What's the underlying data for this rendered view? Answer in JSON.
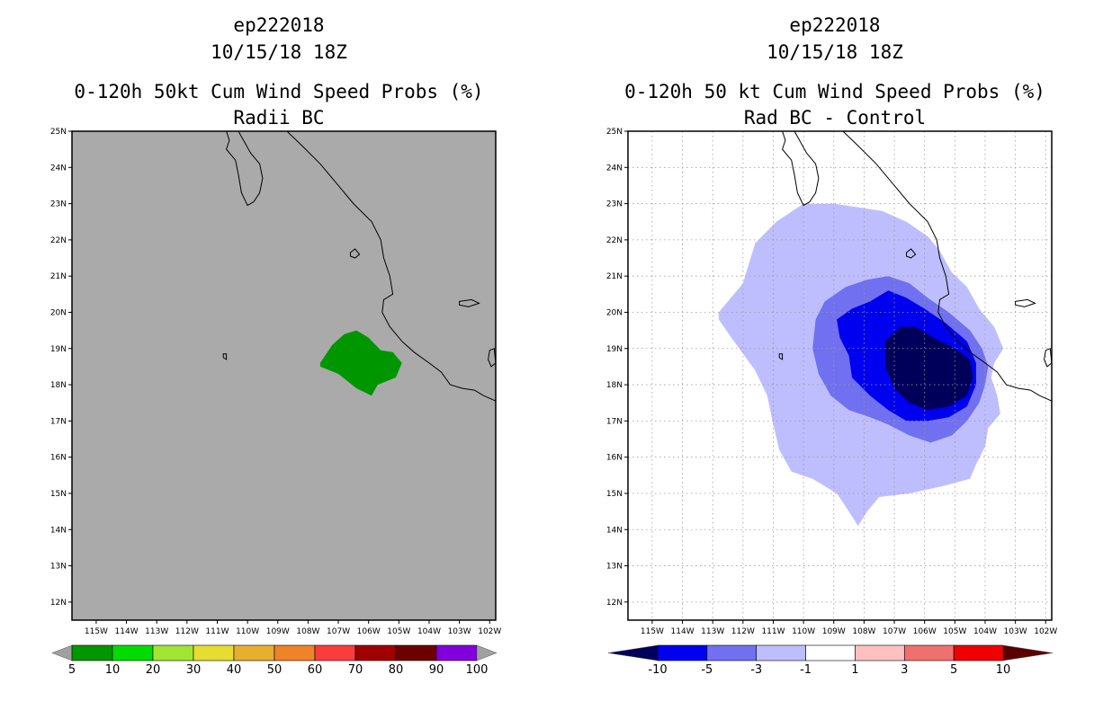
{
  "chart_data": [
    {
      "type": "heatmap",
      "id": "left",
      "title_lines": [
        "ep222018",
        "10/15/18 18Z",
        "0-120h 50kt Cum Wind Speed Probs (%)",
        "Radii BC"
      ],
      "background": "#aaaaaa",
      "xlim": [
        -115.8,
        -101.8
      ],
      "ylim": [
        11.5,
        25
      ],
      "x_ticks": [
        "115W",
        "114W",
        "113W",
        "112W",
        "111W",
        "110W",
        "109W",
        "108W",
        "107W",
        "106W",
        "105W",
        "104W",
        "103W",
        "102W"
      ],
      "y_ticks": [
        "12N",
        "13N",
        "14N",
        "15N",
        "16N",
        "17N",
        "18N",
        "19N",
        "20N",
        "21N",
        "22N",
        "23N",
        "24N",
        "25N"
      ],
      "grid": false,
      "regions": [
        {
          "name": "prob-5-10-region",
          "color": "#009600",
          "coords": [
            [
              -107.6,
              18.6
            ],
            [
              -107.2,
              19.1
            ],
            [
              -106.8,
              19.4
            ],
            [
              -106.4,
              19.5
            ],
            [
              -106.0,
              19.3
            ],
            [
              -105.6,
              18.95
            ],
            [
              -105.2,
              18.9
            ],
            [
              -104.9,
              18.6
            ],
            [
              -105.1,
              18.2
            ],
            [
              -105.7,
              18.0
            ],
            [
              -105.9,
              17.7
            ],
            [
              -106.4,
              17.9
            ],
            [
              -107.0,
              18.3
            ],
            [
              -107.6,
              18.5
            ]
          ]
        }
      ],
      "colorbar": {
        "labels": [
          "5",
          "10",
          "20",
          "30",
          "40",
          "50",
          "60",
          "70",
          "80",
          "90",
          "100"
        ],
        "colors": [
          "#009600",
          "#00dc00",
          "#a0e632",
          "#e6dc32",
          "#e6af2d",
          "#f08228",
          "#fa3c3c",
          "#a00000",
          "#6e0000",
          "#8200dc"
        ],
        "under_color": "#a0a0a0",
        "over_color": "#a0a0a0"
      }
    },
    {
      "type": "heatmap",
      "id": "right",
      "title_lines": [
        "ep222018",
        "10/15/18 18Z",
        "0-120h 50 kt Cum Wind Speed Probs (%)",
        "Rad BC - Control"
      ],
      "background": "#ffffff",
      "xlim": [
        -115.8,
        -101.8
      ],
      "ylim": [
        11.5,
        25
      ],
      "x_ticks": [
        "115W",
        "114W",
        "113W",
        "112W",
        "111W",
        "110W",
        "109W",
        "108W",
        "107W",
        "106W",
        "105W",
        "104W",
        "103W",
        "102W"
      ],
      "y_ticks": [
        "12N",
        "13N",
        "14N",
        "15N",
        "16N",
        "17N",
        "18N",
        "19N",
        "20N",
        "21N",
        "22N",
        "23N",
        "24N",
        "25N"
      ],
      "grid": true,
      "regions": [
        {
          "name": "diff-minus1-to-minus3-region",
          "color": "#bebeff",
          "coords": [
            [
              -112.8,
              20.0
            ],
            [
              -112.0,
              20.8
            ],
            [
              -111.6,
              21.9
            ],
            [
              -110.9,
              22.5
            ],
            [
              -110.0,
              23.0
            ],
            [
              -109.0,
              23.0
            ],
            [
              -108.2,
              22.9
            ],
            [
              -107.4,
              22.8
            ],
            [
              -106.6,
              22.5
            ],
            [
              -105.9,
              22.1
            ],
            [
              -105.5,
              21.7
            ],
            [
              -105.1,
              21.1
            ],
            [
              -104.6,
              20.7
            ],
            [
              -104.2,
              20.1
            ],
            [
              -103.7,
              19.6
            ],
            [
              -103.4,
              19.0
            ],
            [
              -103.7,
              18.6
            ],
            [
              -103.8,
              18.2
            ],
            [
              -103.6,
              17.7
            ],
            [
              -103.5,
              17.2
            ],
            [
              -103.9,
              16.8
            ],
            [
              -104.0,
              16.3
            ],
            [
              -104.3,
              15.8
            ],
            [
              -104.5,
              15.4
            ],
            [
              -105.4,
              15.2
            ],
            [
              -106.5,
              15.0
            ],
            [
              -107.5,
              14.9
            ],
            [
              -107.9,
              14.5
            ],
            [
              -108.2,
              14.1
            ],
            [
              -108.5,
              14.5
            ],
            [
              -108.9,
              15.0
            ],
            [
              -109.7,
              15.4
            ],
            [
              -110.4,
              15.6
            ],
            [
              -110.8,
              16.2
            ],
            [
              -111.0,
              16.9
            ],
            [
              -111.2,
              17.7
            ],
            [
              -111.6,
              18.4
            ],
            [
              -112.3,
              19.2
            ],
            [
              -112.8,
              19.8
            ]
          ]
        },
        {
          "name": "diff-minus3-to-minus5-region",
          "color": "#7070f0",
          "coords": [
            [
              -109.6,
              19.8
            ],
            [
              -109.3,
              20.3
            ],
            [
              -108.6,
              20.7
            ],
            [
              -107.9,
              20.9
            ],
            [
              -107.2,
              21.0
            ],
            [
              -106.5,
              20.8
            ],
            [
              -105.9,
              20.4
            ],
            [
              -105.2,
              20.0
            ],
            [
              -104.5,
              19.5
            ],
            [
              -104.1,
              19.0
            ],
            [
              -103.9,
              18.5
            ],
            [
              -104.0,
              18.0
            ],
            [
              -104.2,
              17.5
            ],
            [
              -104.6,
              17.0
            ],
            [
              -105.1,
              16.6
            ],
            [
              -105.8,
              16.4
            ],
            [
              -106.5,
              16.6
            ],
            [
              -107.2,
              16.9
            ],
            [
              -107.8,
              17.1
            ],
            [
              -108.5,
              17.3
            ],
            [
              -109.1,
              17.7
            ],
            [
              -109.5,
              18.3
            ],
            [
              -109.7,
              19.0
            ]
          ]
        },
        {
          "name": "diff-minus5-to-minus10-region",
          "color": "#0000f0",
          "coords": [
            [
              -108.9,
              19.8
            ],
            [
              -108.4,
              20.1
            ],
            [
              -107.8,
              20.3
            ],
            [
              -107.2,
              20.6
            ],
            [
              -106.6,
              20.4
            ],
            [
              -106.0,
              20.1
            ],
            [
              -105.3,
              19.7
            ],
            [
              -104.6,
              19.2
            ],
            [
              -104.3,
              18.6
            ],
            [
              -104.3,
              18.0
            ],
            [
              -104.6,
              17.4
            ],
            [
              -105.2,
              17.1
            ],
            [
              -105.9,
              17.0
            ],
            [
              -106.6,
              17.0
            ],
            [
              -107.2,
              17.3
            ],
            [
              -107.8,
              17.7
            ],
            [
              -108.4,
              18.2
            ],
            [
              -108.5,
              18.8
            ],
            [
              -108.8,
              19.3
            ]
          ]
        },
        {
          "name": "diff-below-minus10-region",
          "color": "#00005a",
          "coords": [
            [
              -107.3,
              19.2
            ],
            [
              -106.8,
              19.6
            ],
            [
              -106.3,
              19.6
            ],
            [
              -105.7,
              19.3
            ],
            [
              -105.0,
              19.0
            ],
            [
              -104.5,
              18.7
            ],
            [
              -104.4,
              18.2
            ],
            [
              -104.6,
              17.7
            ],
            [
              -105.2,
              17.4
            ],
            [
              -105.9,
              17.3
            ],
            [
              -106.5,
              17.5
            ],
            [
              -107.0,
              17.9
            ],
            [
              -107.3,
              18.5
            ]
          ]
        }
      ],
      "colorbar": {
        "labels": [
          "-10",
          "-5",
          "-3",
          "-1",
          "1",
          "3",
          "5",
          "10"
        ],
        "colors": [
          "#0000f0",
          "#7070f0",
          "#bebeff",
          "#ffffff",
          "#ffc0c0",
          "#f07070",
          "#f00000"
        ],
        "under_color": "#00005a",
        "over_color": "#5a0000"
      }
    }
  ],
  "coastline": [
    [
      [
        -110.3,
        25.0
      ],
      [
        -110.1,
        24.7
      ],
      [
        -109.9,
        24.4
      ],
      [
        -109.6,
        24.1
      ],
      [
        -109.5,
        23.7
      ],
      [
        -109.6,
        23.3
      ],
      [
        -109.8,
        23.05
      ],
      [
        -110.0,
        22.95
      ],
      [
        -110.2,
        23.3
      ],
      [
        -110.3,
        23.8
      ],
      [
        -110.4,
        24.2
      ],
      [
        -110.7,
        24.5
      ],
      [
        -110.6,
        24.75
      ],
      [
        -110.7,
        25.0
      ]
    ],
    [
      [
        -108.7,
        25.0
      ],
      [
        -108.2,
        24.6
      ],
      [
        -107.6,
        24.1
      ],
      [
        -107.0,
        23.5
      ],
      [
        -106.5,
        23.0
      ],
      [
        -105.9,
        22.5
      ],
      [
        -105.6,
        22.0
      ],
      [
        -105.5,
        21.5
      ],
      [
        -105.3,
        21.0
      ],
      [
        -105.2,
        20.5
      ],
      [
        -105.5,
        20.35
      ],
      [
        -105.55,
        20.0
      ],
      [
        -105.3,
        19.6
      ],
      [
        -104.9,
        19.2
      ],
      [
        -104.5,
        18.9
      ],
      [
        -104.0,
        18.6
      ],
      [
        -103.6,
        18.35
      ],
      [
        -103.3,
        18.0
      ],
      [
        -102.9,
        17.9
      ],
      [
        -102.5,
        17.85
      ],
      [
        -102.2,
        17.7
      ],
      [
        -101.8,
        17.55
      ]
    ]
  ],
  "islands": [
    [
      [
        -106.6,
        21.65
      ],
      [
        -106.45,
        21.75
      ],
      [
        -106.3,
        21.6
      ],
      [
        -106.45,
        21.5
      ],
      [
        -106.6,
        21.55
      ]
    ],
    [
      [
        -103.0,
        20.3
      ],
      [
        -102.6,
        20.35
      ],
      [
        -102.35,
        20.25
      ],
      [
        -102.7,
        20.15
      ],
      [
        -103.0,
        20.2
      ]
    ],
    [
      [
        -110.8,
        18.85
      ],
      [
        -110.7,
        18.85
      ],
      [
        -110.7,
        18.7
      ],
      [
        -110.8,
        18.75
      ]
    ],
    [
      [
        -102.0,
        18.95
      ],
      [
        -101.85,
        19.0
      ],
      [
        -101.8,
        18.6
      ],
      [
        -101.95,
        18.5
      ],
      [
        -102.05,
        18.7
      ]
    ]
  ]
}
